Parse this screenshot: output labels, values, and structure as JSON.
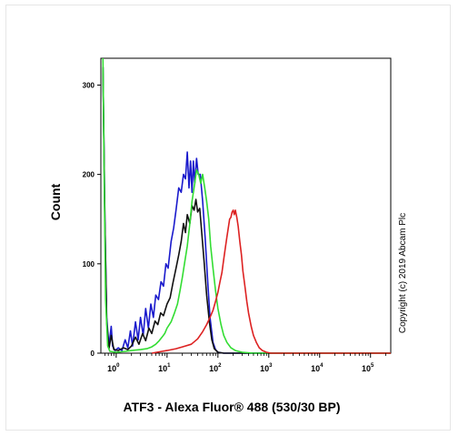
{
  "chart_data": {
    "type": "line",
    "title": "",
    "xlabel": "ATF3 - Alexa Fluor® 488 (530/30 BP)",
    "ylabel": "Count",
    "x_scale": "log",
    "xlim": [
      0.5,
      250000
    ],
    "ylim": [
      0,
      330
    ],
    "x_ticks": [
      {
        "base": "10",
        "exp": "0",
        "value": 1
      },
      {
        "base": "10",
        "exp": "1",
        "value": 10
      },
      {
        "base": "10",
        "exp": "2",
        "value": 100
      },
      {
        "base": "10",
        "exp": "3",
        "value": 1000
      },
      {
        "base": "10",
        "exp": "4",
        "value": 10000
      },
      {
        "base": "10",
        "exp": "5",
        "value": 100000
      }
    ],
    "y_ticks": [
      {
        "label": "0",
        "value": 0
      },
      {
        "label": "100",
        "value": 100
      },
      {
        "label": "200",
        "value": 200
      },
      {
        "label": "300",
        "value": 300
      }
    ],
    "annotation": "Copyright (c) 2019 Abcam Plc",
    "grid": false,
    "legend": "none",
    "series": [
      {
        "color": "#1a1acc",
        "points": [
          [
            0.55,
            320
          ],
          [
            0.6,
            150
          ],
          [
            0.65,
            40
          ],
          [
            0.72,
            8
          ],
          [
            0.8,
            30
          ],
          [
            0.85,
            8
          ],
          [
            0.95,
            3
          ],
          [
            1.1,
            6
          ],
          [
            1.3,
            3
          ],
          [
            1.5,
            15
          ],
          [
            1.7,
            6
          ],
          [
            1.9,
            25
          ],
          [
            2.1,
            8
          ],
          [
            2.4,
            35
          ],
          [
            2.7,
            15
          ],
          [
            3,
            40
          ],
          [
            3.4,
            20
          ],
          [
            3.8,
            50
          ],
          [
            4.3,
            28
          ],
          [
            4.8,
            55
          ],
          [
            5.4,
            40
          ],
          [
            6,
            65
          ],
          [
            6.8,
            60
          ],
          [
            7.6,
            80
          ],
          [
            8.5,
            75
          ],
          [
            9.5,
            100
          ],
          [
            10.5,
            95
          ],
          [
            12,
            125
          ],
          [
            13.5,
            140
          ],
          [
            15,
            160
          ],
          [
            17,
            185
          ],
          [
            19,
            180
          ],
          [
            21,
            200
          ],
          [
            23,
            195
          ],
          [
            25,
            225
          ],
          [
            27,
            185
          ],
          [
            29,
            215
          ],
          [
            31,
            180
          ],
          [
            33,
            215
          ],
          [
            35,
            190
          ],
          [
            38,
            218
          ],
          [
            41,
            200
          ],
          [
            45,
            200
          ],
          [
            50,
            170
          ],
          [
            56,
            130
          ],
          [
            63,
            80
          ],
          [
            70,
            40
          ],
          [
            80,
            12
          ],
          [
            90,
            4
          ],
          [
            100,
            1
          ],
          [
            130,
            0
          ],
          [
            250000,
            0
          ]
        ]
      },
      {
        "color": "#111111",
        "points": [
          [
            0.55,
            320
          ],
          [
            0.6,
            150
          ],
          [
            0.65,
            35
          ],
          [
            0.72,
            5
          ],
          [
            0.8,
            20
          ],
          [
            0.9,
            4
          ],
          [
            1.1,
            3
          ],
          [
            1.4,
            6
          ],
          [
            1.7,
            4
          ],
          [
            2,
            8
          ],
          [
            2.4,
            18
          ],
          [
            2.8,
            10
          ],
          [
            3.3,
            22
          ],
          [
            3.8,
            14
          ],
          [
            4.4,
            28
          ],
          [
            5,
            22
          ],
          [
            5.8,
            36
          ],
          [
            6.6,
            32
          ],
          [
            7.5,
            45
          ],
          [
            8.5,
            42
          ],
          [
            10,
            55
          ],
          [
            11.5,
            62
          ],
          [
            13,
            78
          ],
          [
            15,
            95
          ],
          [
            17,
            110
          ],
          [
            19,
            125
          ],
          [
            21,
            145
          ],
          [
            23,
            135
          ],
          [
            25,
            155
          ],
          [
            28,
            145
          ],
          [
            31,
            165
          ],
          [
            34,
            160
          ],
          [
            37,
            172
          ],
          [
            40,
            158
          ],
          [
            44,
            162
          ],
          [
            48,
            135
          ],
          [
            54,
            100
          ],
          [
            60,
            65
          ],
          [
            68,
            35
          ],
          [
            76,
            15
          ],
          [
            85,
            5
          ],
          [
            100,
            1
          ],
          [
            130,
            0
          ],
          [
            250000,
            0
          ]
        ]
      },
      {
        "color": "#33dd33",
        "points": [
          [
            0.55,
            330
          ],
          [
            0.58,
            200
          ],
          [
            0.62,
            60
          ],
          [
            0.68,
            8
          ],
          [
            0.75,
            2
          ],
          [
            1,
            1
          ],
          [
            1.5,
            2
          ],
          [
            2,
            3
          ],
          [
            3,
            4
          ],
          [
            4,
            5
          ],
          [
            5,
            7
          ],
          [
            6,
            10
          ],
          [
            7,
            14
          ],
          [
            8,
            18
          ],
          [
            9,
            22
          ],
          [
            10,
            28
          ],
          [
            12,
            35
          ],
          [
            14,
            45
          ],
          [
            16,
            55
          ],
          [
            18,
            70
          ],
          [
            20,
            85
          ],
          [
            22,
            100
          ],
          [
            25,
            120
          ],
          [
            28,
            145
          ],
          [
            31,
            170
          ],
          [
            35,
            190
          ],
          [
            38,
            205
          ],
          [
            42,
            200
          ],
          [
            46,
            190
          ],
          [
            50,
            200
          ],
          [
            55,
            185
          ],
          [
            60,
            170
          ],
          [
            66,
            150
          ],
          [
            72,
            120
          ],
          [
            80,
            95
          ],
          [
            90,
            70
          ],
          [
            100,
            50
          ],
          [
            115,
            32
          ],
          [
            130,
            20
          ],
          [
            150,
            12
          ],
          [
            180,
            6
          ],
          [
            220,
            3
          ],
          [
            300,
            1
          ],
          [
            500,
            0
          ],
          [
            250000,
            0
          ]
        ]
      },
      {
        "color": "#dd2222",
        "points": [
          [
            5,
            0
          ],
          [
            8,
            2
          ],
          [
            10,
            3
          ],
          [
            15,
            5
          ],
          [
            20,
            7
          ],
          [
            30,
            10
          ],
          [
            40,
            16
          ],
          [
            50,
            24
          ],
          [
            60,
            32
          ],
          [
            70,
            40
          ],
          [
            80,
            48
          ],
          [
            90,
            58
          ],
          [
            100,
            68
          ],
          [
            110,
            80
          ],
          [
            120,
            90
          ],
          [
            130,
            105
          ],
          [
            140,
            118
          ],
          [
            150,
            130
          ],
          [
            160,
            140
          ],
          [
            170,
            150
          ],
          [
            180,
            152
          ],
          [
            190,
            158
          ],
          [
            200,
            160
          ],
          [
            210,
            155
          ],
          [
            220,
            160
          ],
          [
            235,
            152
          ],
          [
            250,
            142
          ],
          [
            270,
            125
          ],
          [
            290,
            110
          ],
          [
            310,
            92
          ],
          [
            340,
            75
          ],
          [
            370,
            58
          ],
          [
            400,
            45
          ],
          [
            450,
            30
          ],
          [
            500,
            20
          ],
          [
            570,
            12
          ],
          [
            650,
            6
          ],
          [
            750,
            3
          ],
          [
            900,
            1
          ],
          [
            1100,
            0
          ],
          [
            250000,
            0
          ]
        ]
      }
    ]
  }
}
